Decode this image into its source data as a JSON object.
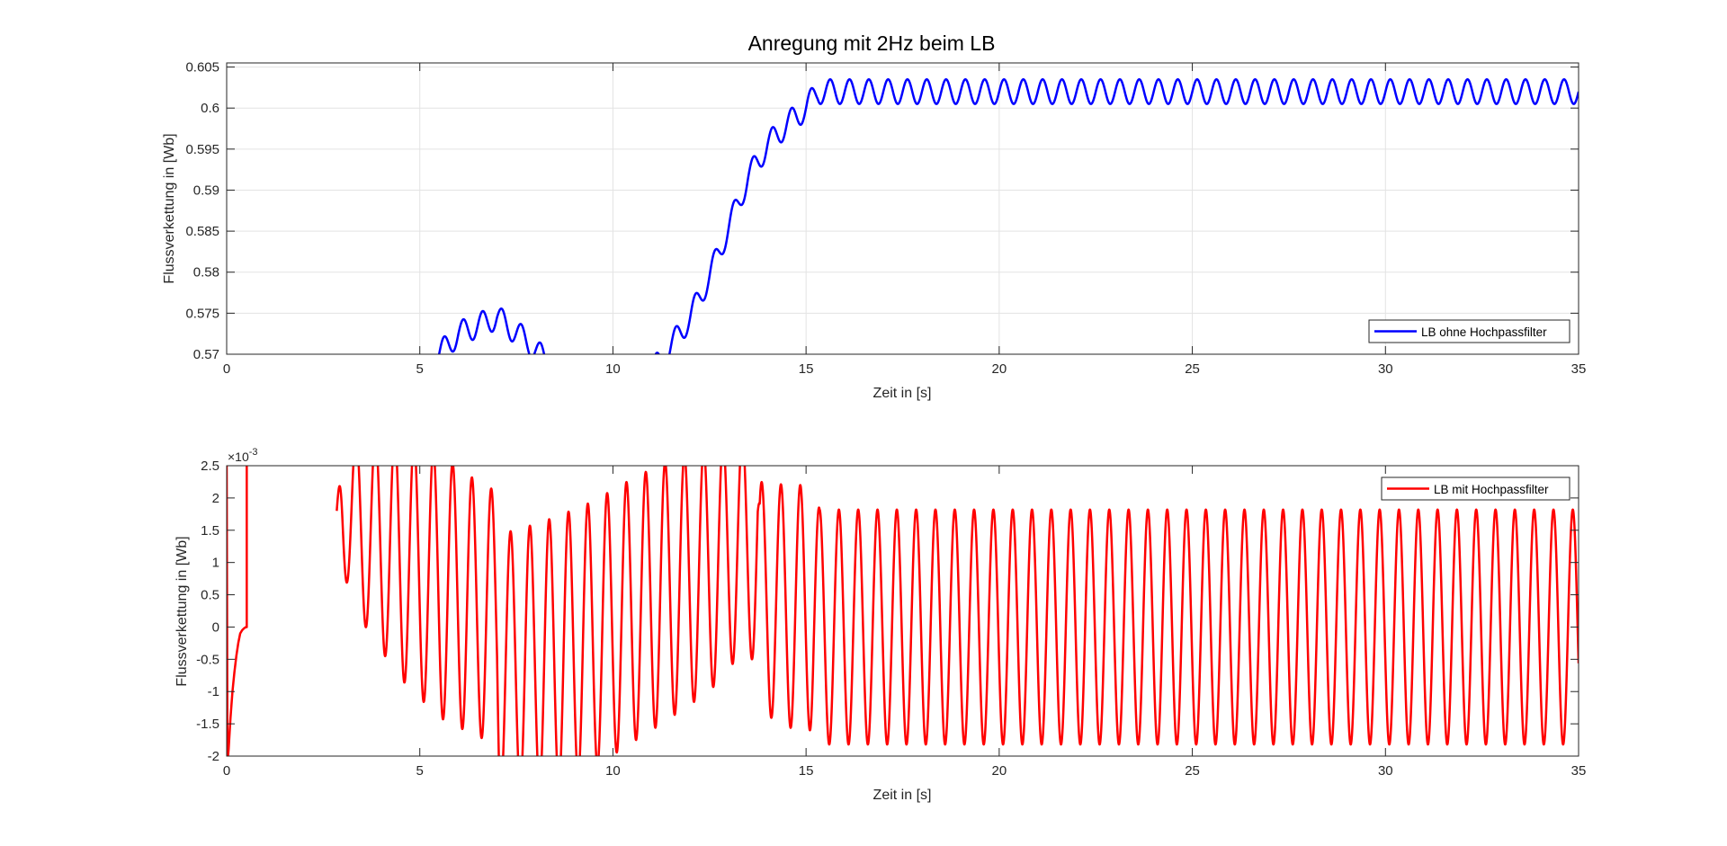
{
  "figure": {
    "background": "#ffffff",
    "axes_color": "#262626",
    "grid_color": "#e3e3e3"
  },
  "chart_data": [
    {
      "type": "line",
      "title": "Anregung mit 2Hz beim LB",
      "xlabel": "Zeit in [s]",
      "ylabel": "Flussverkettung in [Wb]",
      "xlim": [
        0,
        35
      ],
      "ylim": [
        0.57,
        0.6055
      ],
      "x_ticks": [
        0,
        5,
        10,
        15,
        20,
        25,
        30,
        35
      ],
      "x_tick_labels": [
        "0",
        "5",
        "10",
        "15",
        "20",
        "25",
        "30",
        "35"
      ],
      "y_ticks": [
        0.57,
        0.575,
        0.58,
        0.585,
        0.59,
        0.595,
        0.6,
        0.605
      ],
      "y_tick_labels": [
        "0.57",
        "0.575",
        "0.58",
        "0.585",
        "0.59",
        "0.595",
        "0.6",
        "0.605"
      ],
      "grid": true,
      "legend": {
        "position": "bottom-right",
        "entries": [
          "LB ohne Hochpassfilter"
        ]
      },
      "series": [
        {
          "name": "LB ohne Hochpassfilter",
          "color": "#0000ff",
          "oscillation_hz": 2,
          "envelope": {
            "x": [
              0,
              4.9,
              5.3,
              6.0,
              7.0,
              7.8,
              8.3,
              8.8,
              9.8,
              10.8,
              11.3,
              12.0,
              12.5,
              13.0,
              13.5,
              14.0,
              14.5,
              15.0,
              15.3,
              35
            ],
            "center": [
              0.55,
              0.566,
              0.569,
              0.5725,
              0.5745,
              0.5715,
              0.569,
              0.566,
              0.563,
              0.567,
              0.5695,
              0.5745,
              0.5795,
              0.5855,
              0.5915,
              0.5955,
              0.598,
              0.6,
              0.602,
              0.602
            ],
            "amplitude": [
              0.0,
              0.0015,
              0.0015,
              0.0015,
              0.0015,
              0.0015,
              0.0015,
              0.0015,
              0.0015,
              0.0015,
              0.0015,
              0.0015,
              0.0015,
              0.0015,
              0.0015,
              0.0015,
              0.0015,
              0.0015,
              0.0015,
              0.0015
            ]
          }
        }
      ]
    },
    {
      "type": "line",
      "title": "",
      "xlabel": "Zeit in [s]",
      "ylabel": "Flussverkettung in [Wb]",
      "y_exponent_label": "×10",
      "y_exponent_power": "-3",
      "xlim": [
        0,
        35
      ],
      "ylim": [
        -2,
        2.5
      ],
      "x_ticks": [
        0,
        5,
        10,
        15,
        20,
        25,
        30,
        35
      ],
      "x_tick_labels": [
        "0",
        "5",
        "10",
        "15",
        "20",
        "25",
        "30",
        "35"
      ],
      "y_ticks": [
        -2,
        -1.5,
        -1,
        -0.5,
        0,
        0.5,
        1,
        1.5,
        2,
        2.5
      ],
      "y_tick_labels": [
        "-2",
        "-1.5",
        "-1",
        "-0.5",
        "0",
        "0.5",
        "1",
        "1.5",
        "2",
        "2.5"
      ],
      "grid": false,
      "legend": {
        "position": "top-right",
        "entries": [
          "LB mit Hochpassfilter"
        ]
      },
      "series": [
        {
          "name": "LB mit Hochpassfilter",
          "color": "#ff0000",
          "oscillation_hz": 2,
          "envelope": {
            "x": [
              2.85,
              3.0,
              3.3,
              3.7,
              4.5,
              5.5,
              6.5,
              7.0,
              7.05,
              7.5,
              8.5,
              9.5,
              10.2,
              11.0,
              11.5,
              12.5,
              13.2,
              13.75,
              13.8,
              14.5,
              14.95,
              15.2,
              15.35,
              35
            ],
            "upper": [
              1.8,
              3.0,
              3.0,
              3.0,
              3.0,
              2.7,
              2.25,
              2.1,
              1.45,
              1.5,
              1.7,
              1.95,
              2.2,
              2.45,
              2.6,
              2.8,
              3.0,
              3.0,
              2.25,
              2.2,
              2.2,
              2.45,
              1.82,
              1.82
            ],
            "lower": [
              1.8,
              0.9,
              0.3,
              -0.1,
              -0.8,
              -1.4,
              -1.7,
              -1.8,
              -2.5,
              -2.5,
              -2.5,
              -2.2,
              -1.9,
              -1.6,
              -1.4,
              -1.0,
              -0.5,
              -0.5,
              -1.3,
              -1.55,
              -1.6,
              -1.6,
              -1.82,
              -1.82
            ]
          },
          "initial_segment": {
            "x": [
              0,
              0.02,
              0.05,
              0.1,
              0.15,
              0.2,
              0.25,
              0.3,
              0.35,
              0.4,
              0.45,
              0.5,
              0.52,
              0.52,
              0.6
            ],
            "y": [
              2.5,
              -2.1,
              -1.9,
              -1.4,
              -1.0,
              -0.7,
              -0.45,
              -0.25,
              -0.1,
              -0.05,
              -0.02,
              0.0,
              0.0,
              2.6,
              2.6
            ]
          }
        }
      ]
    }
  ]
}
